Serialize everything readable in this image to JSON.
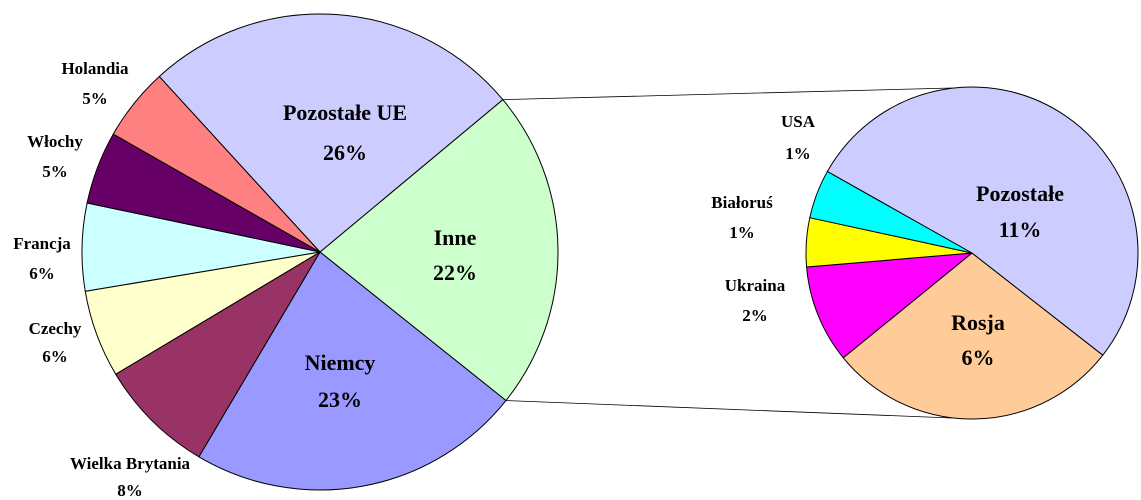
{
  "chart_data": [
    {
      "type": "pie",
      "categories": [
        "Inne",
        "Niemcy",
        "Wielka Brytania",
        "Czechy",
        "Francja",
        "Włochy",
        "Holandia",
        "Pozostałe UE"
      ],
      "values": [
        22,
        23,
        8,
        6,
        6,
        5,
        5,
        26
      ],
      "value_labels": [
        "22%",
        "23%",
        "8%",
        "6%",
        "6%",
        "5%",
        "5%",
        "26%"
      ],
      "colors": [
        "#ccffcc",
        "#9999ff",
        "#993366",
        "#ffffcc",
        "#ccffff",
        "#660066",
        "#ff8080",
        "#ccccff"
      ]
    },
    {
      "type": "pie",
      "categories": [
        "Rosja",
        "Ukraina",
        "Białoruś",
        "USA",
        "Pozostałe"
      ],
      "values": [
        6,
        2,
        1,
        1,
        11
      ],
      "value_labels": [
        "6%",
        "2%",
        "1%",
        "1%",
        "11%"
      ],
      "colors": [
        "#ffcc99",
        "#ff00ff",
        "#ffff00",
        "#00ffff",
        "#ccccff"
      ]
    }
  ]
}
